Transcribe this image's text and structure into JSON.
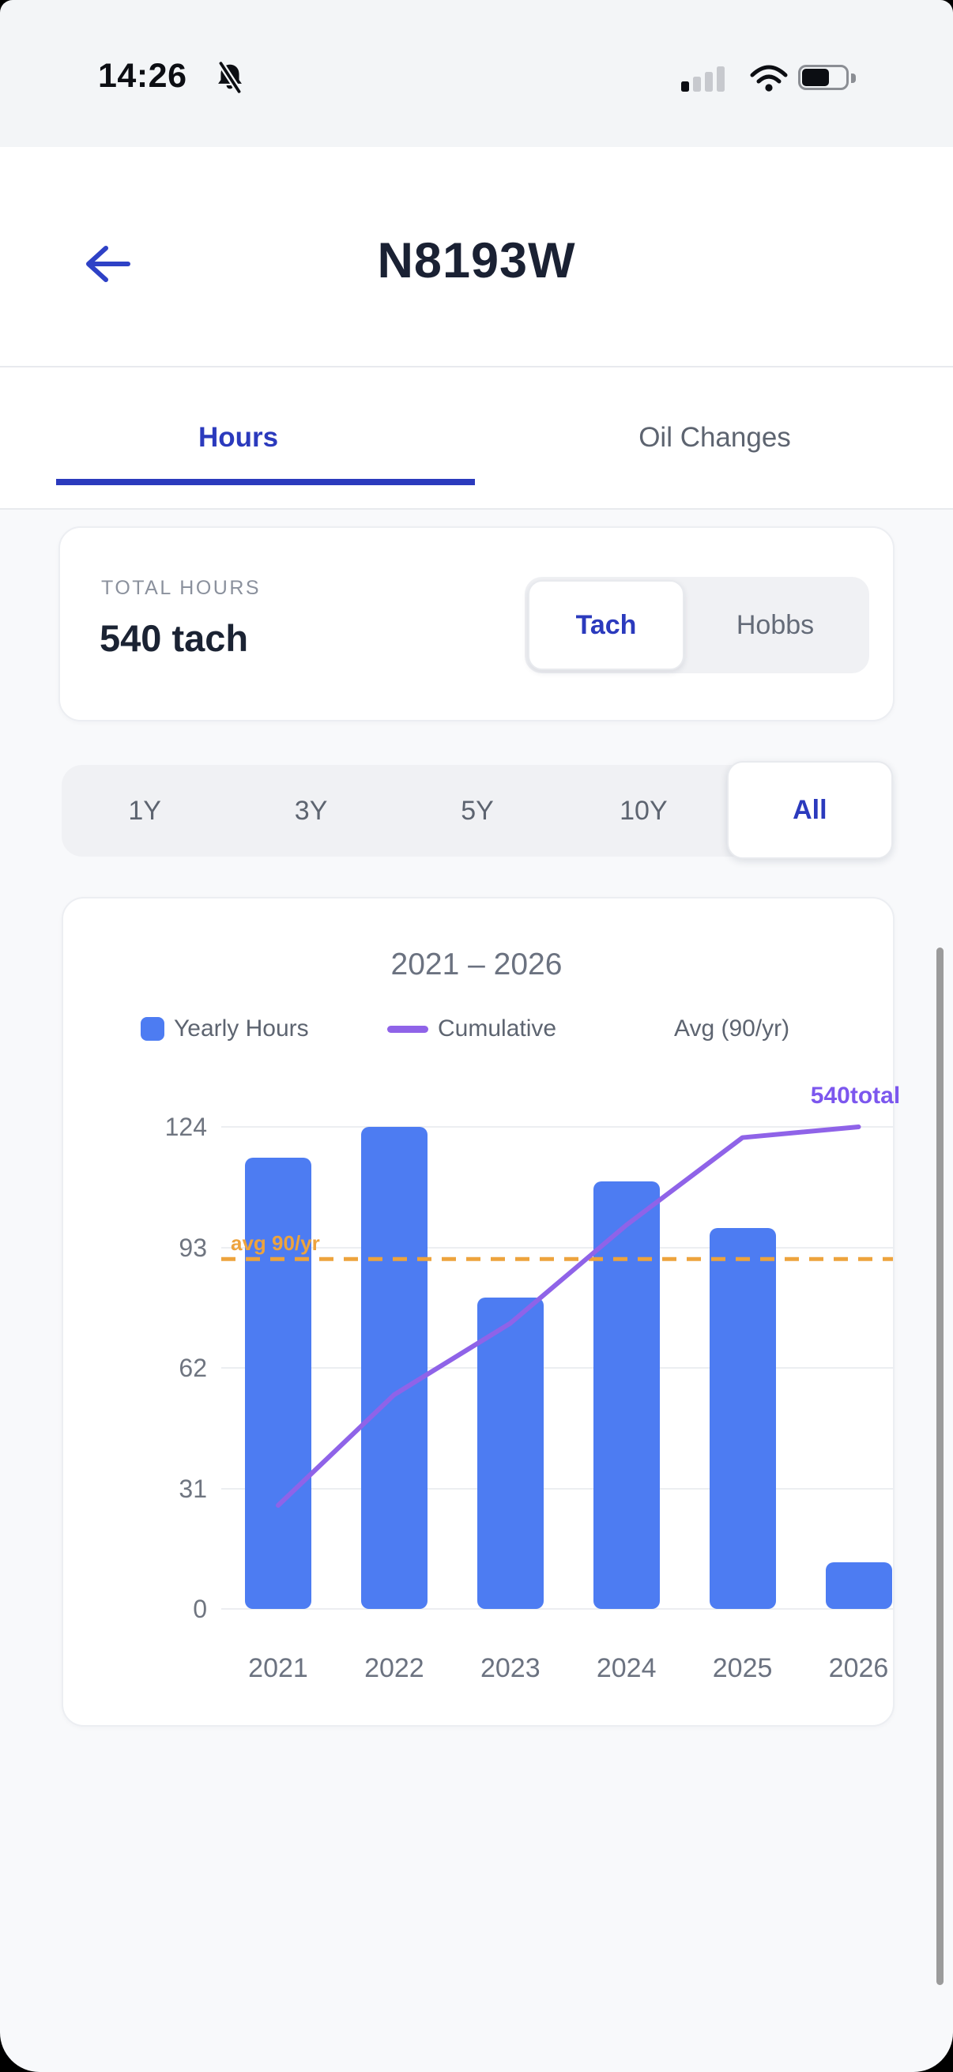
{
  "status_bar": {
    "time": "14:26",
    "icons": {
      "notifications": "bell-slash-icon",
      "cellular": "signal-1-of-4-bars",
      "wifi": "wifi-full",
      "battery": "battery-65-percent"
    }
  },
  "header": {
    "title": "N8193W",
    "back": "back-arrow"
  },
  "tabs": [
    {
      "label": "Hours",
      "active": true
    },
    {
      "label": "Oil Changes",
      "active": false
    }
  ],
  "total_card": {
    "label": "TOTAL HOURS",
    "value": "540 tach",
    "segmented": {
      "options": [
        "Tach",
        "Hobbs"
      ],
      "selected": "Tach"
    }
  },
  "range_selector": {
    "options": [
      "1Y",
      "3Y",
      "5Y",
      "10Y",
      "All"
    ],
    "selected": "All"
  },
  "accent_colors": {
    "indigo": "#2b3abd",
    "bar_blue": "#4d7cf2",
    "line_purple": "#8f63e8",
    "avg_orange": "#eda33d",
    "anno_purple": "#7c57ee"
  },
  "chart_data": {
    "type": "bar",
    "title": "2021 – 2026",
    "categories": [
      "2021",
      "2022",
      "2023",
      "2024",
      "2025",
      "2026"
    ],
    "series": [
      {
        "name": "Yearly Hours",
        "type": "bar",
        "color": "#4d7cf2",
        "values": [
          116,
          124,
          80,
          110,
          98,
          12
        ]
      },
      {
        "name": "Cumulative",
        "type": "line",
        "color": "#8f63e8",
        "axis": "secondary",
        "ymax": 540,
        "values": [
          116,
          240,
          320,
          430,
          528,
          540
        ],
        "end_label": "540total",
        "end_label_color": "#7c57ee"
      },
      {
        "name": "Avg (90/yr)",
        "type": "reference-line",
        "style": "dashed",
        "color": "#eda33d",
        "value": 90,
        "label": "avg 90/yr"
      }
    ],
    "yticks": [
      0,
      31,
      62,
      93,
      124
    ],
    "ylim": [
      0,
      124
    ],
    "grid": true,
    "legend_position": "top"
  }
}
